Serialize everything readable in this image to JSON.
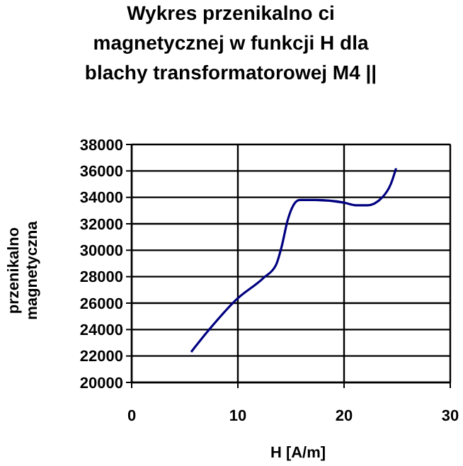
{
  "chart_data": {
    "type": "line",
    "title": "Wykres przenikalno  ci\nmagnetycznej w funkcji H dla\nblachy transformatorowej M4 ||",
    "xlabel": "H [A/m]",
    "ylabel": "przenikalno\nmagnetyczna",
    "x": [
      5.6,
      7.3,
      9.9,
      12.4,
      13.6,
      14.1,
      14.7,
      15.1,
      15.8,
      17.3,
      20,
      21.1,
      22.2,
      23.6,
      24.4,
      24.9
    ],
    "series": [
      {
        "color": "#000080",
        "values": [
          22300,
          24000,
          26300,
          27900,
          28900,
          30200,
          32300,
          33200,
          33800,
          33800,
          33600,
          33400,
          33400,
          34000,
          35000,
          36200
        ]
      }
    ],
    "xlim": [
      0,
      30
    ],
    "xticks": [
      0,
      10,
      20,
      30
    ],
    "ylim": [
      20000,
      38000
    ],
    "yticks": [
      20000,
      22000,
      24000,
      26000,
      28000,
      30000,
      32000,
      34000,
      36000,
      38000
    ],
    "grid": true,
    "marker": "none",
    "line_style": "solid"
  }
}
